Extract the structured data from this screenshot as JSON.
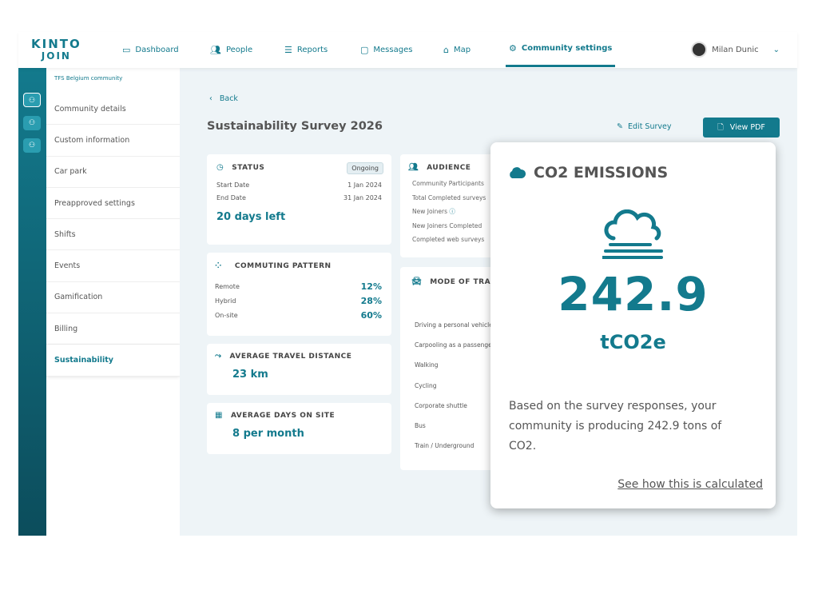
{
  "header": {
    "logo_top": "KINTO",
    "logo_bottom": "JOIN",
    "nav": [
      {
        "label": "Dashboard",
        "icon": "calendar-icon"
      },
      {
        "label": "People",
        "icon": "people-icon"
      },
      {
        "label": "Reports",
        "icon": "list-icon"
      },
      {
        "label": "Messages",
        "icon": "message-icon"
      },
      {
        "label": "Map",
        "icon": "map-icon"
      },
      {
        "label": "Community settings",
        "icon": "gear-icon",
        "active": true
      }
    ],
    "user": "Milan Dunic"
  },
  "sidebar": {
    "community": "TFS Belgium community",
    "items": [
      "Community details",
      "Custom information",
      "Car park",
      "Preapproved settings",
      "Shifts",
      "Events",
      "Gamification",
      "Billing",
      "Sustainability"
    ],
    "selected": "Sustainability"
  },
  "main": {
    "back": "Back",
    "title": "Sustainability Survey 2026",
    "edit": "Edit Survey",
    "view_pdf": "View PDF",
    "status": {
      "title": "STATUS",
      "badge": "Ongoing",
      "start_label": "Start Date",
      "start": "1 Jan 2024",
      "end_label": "End Date",
      "end": "31 Jan 2024",
      "left": "20 days left"
    },
    "commuting": {
      "title": "COMMUTING PATTERN",
      "rows": [
        {
          "label": "Remote",
          "value": "12%"
        },
        {
          "label": "Hybrid",
          "value": "28%"
        },
        {
          "label": "On-site",
          "value": "60%"
        }
      ]
    },
    "travel": {
      "title": "AVERAGE TRAVEL DISTANCE",
      "value": "23 km"
    },
    "days": {
      "title": "AVERAGE DAYS ON SITE",
      "value": "8 per month"
    },
    "audience": {
      "title": "AUDIENCE",
      "rows": [
        "Community Participants",
        "Total Completed surveys",
        "New Joiners",
        "New Joiners Completed",
        "Completed web surveys"
      ]
    },
    "mode": {
      "title": "MODE OF TRANSPORT",
      "rows": [
        "Driving a personal vehicle",
        "Carpooling as a passenger",
        "Walking",
        "Cycling",
        "Corporate shuttle",
        "Bus",
        "Train / Underground"
      ]
    }
  },
  "popup": {
    "title": "CO2 EMISSIONS",
    "value": "242.9",
    "unit": "tCO2e",
    "text": "Based on the survey responses, your community is producing 242.9 tons of CO2.",
    "link": "See how this is calculated"
  },
  "colors": {
    "accent": "#137a8d",
    "background": "#eef4f7"
  }
}
